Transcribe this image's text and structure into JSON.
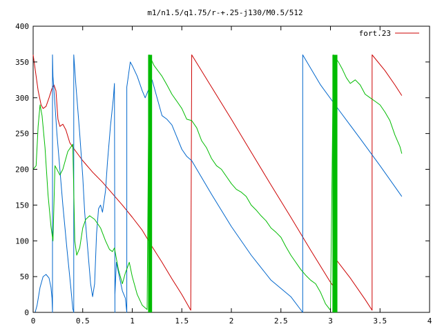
{
  "chart_data": {
    "type": "line",
    "title": "m1/n1.5/q1.75/r-+.25-j130/M0.5/512",
    "xlabel": "",
    "ylabel": "",
    "xlim": [
      0,
      4
    ],
    "ylim": [
      0,
      400
    ],
    "x_ticks": [
      0,
      0.5,
      1,
      1.5,
      2,
      2.5,
      3,
      3.5,
      4
    ],
    "x_tick_labels": [
      "0",
      "0.5",
      "1",
      "1.5",
      "2",
      "2.5",
      "3",
      "3.5",
      "4"
    ],
    "y_ticks": [
      0,
      50,
      100,
      150,
      200,
      250,
      300,
      350,
      400
    ],
    "y_tick_labels": [
      "0",
      "50",
      "100",
      "150",
      "200",
      "250",
      "300",
      "350",
      "400"
    ],
    "grid": false,
    "legend_position": "top-right",
    "legend": [
      {
        "label": "fort.23",
        "color": "#cc0000"
      }
    ],
    "series": [
      {
        "name": "fort.23",
        "color": "#cc0000",
        "points": [
          [
            0.0,
            360
          ],
          [
            0.02,
            340
          ],
          [
            0.05,
            310
          ],
          [
            0.08,
            290
          ],
          [
            0.1,
            285
          ],
          [
            0.13,
            288
          ],
          [
            0.16,
            300
          ],
          [
            0.19,
            313
          ],
          [
            0.21,
            318
          ],
          [
            0.23,
            310
          ],
          [
            0.25,
            270
          ],
          [
            0.27,
            260
          ],
          [
            0.3,
            263
          ],
          [
            0.33,
            255
          ],
          [
            0.37,
            237
          ],
          [
            0.42,
            227
          ],
          [
            0.5,
            212
          ],
          [
            0.6,
            196
          ],
          [
            0.7,
            182
          ],
          [
            0.8,
            166
          ],
          [
            0.9,
            150
          ],
          [
            1.0,
            133
          ],
          [
            1.1,
            115
          ],
          [
            1.2,
            92
          ],
          [
            1.3,
            70
          ],
          [
            1.4,
            47
          ],
          [
            1.5,
            25
          ],
          [
            1.59,
            3
          ],
          [
            1.6,
            360
          ],
          [
            1.8,
            315
          ],
          [
            2.0,
            270
          ],
          [
            2.2,
            224
          ],
          [
            2.4,
            178
          ],
          [
            2.6,
            133
          ],
          [
            2.8,
            87
          ],
          [
            3.0,
            42
          ],
          [
            3.05,
            33
          ],
          [
            3.05,
            75
          ],
          [
            3.2,
            48
          ],
          [
            3.35,
            18
          ],
          [
            3.42,
            3
          ],
          [
            3.42,
            360
          ],
          [
            3.55,
            338
          ],
          [
            3.65,
            318
          ],
          [
            3.72,
            303
          ]
        ]
      },
      {
        "color": "#0066cc",
        "points": [
          [
            0.0,
            0
          ],
          [
            0.02,
            0
          ],
          [
            0.04,
            10
          ],
          [
            0.07,
            35
          ],
          [
            0.1,
            50
          ],
          [
            0.13,
            53
          ],
          [
            0.16,
            48
          ],
          [
            0.18,
            35
          ],
          [
            0.19,
            20
          ],
          [
            0.195,
            0
          ],
          [
            0.195,
            360
          ],
          [
            0.2,
            330
          ],
          [
            0.22,
            290
          ],
          [
            0.24,
            250
          ],
          [
            0.27,
            200
          ],
          [
            0.3,
            150
          ],
          [
            0.34,
            90
          ],
          [
            0.38,
            35
          ],
          [
            0.4,
            5
          ],
          [
            0.41,
            0
          ],
          [
            0.41,
            360
          ],
          [
            0.43,
            320
          ],
          [
            0.47,
            250
          ],
          [
            0.5,
            190
          ],
          [
            0.52,
            140
          ],
          [
            0.55,
            90
          ],
          [
            0.58,
            40
          ],
          [
            0.6,
            22
          ],
          [
            0.62,
            40
          ],
          [
            0.64,
            110
          ],
          [
            0.66,
            145
          ],
          [
            0.68,
            150
          ],
          [
            0.7,
            140
          ],
          [
            0.73,
            170
          ],
          [
            0.75,
            210
          ],
          [
            0.78,
            260
          ],
          [
            0.81,
            300
          ],
          [
            0.82,
            320
          ],
          [
            0.825,
            0
          ],
          [
            0.825,
            25
          ],
          [
            0.84,
            70
          ],
          [
            0.87,
            50
          ],
          [
            0.9,
            30
          ],
          [
            0.93,
            20
          ],
          [
            0.945,
            0
          ],
          [
            0.945,
            315
          ],
          [
            0.96,
            330
          ],
          [
            0.98,
            350
          ],
          [
            1.0,
            345
          ],
          [
            1.05,
            330
          ],
          [
            1.1,
            310
          ],
          [
            1.13,
            300
          ],
          [
            1.16,
            310
          ],
          [
            1.2,
            325
          ],
          [
            1.25,
            300
          ],
          [
            1.3,
            275
          ],
          [
            1.35,
            270
          ],
          [
            1.4,
            262
          ],
          [
            1.45,
            245
          ],
          [
            1.5,
            228
          ],
          [
            1.55,
            218
          ],
          [
            1.6,
            212
          ],
          [
            1.8,
            165
          ],
          [
            2.0,
            120
          ],
          [
            2.2,
            80
          ],
          [
            2.4,
            45
          ],
          [
            2.6,
            22
          ],
          [
            2.72,
            0
          ],
          [
            2.72,
            360
          ],
          [
            2.9,
            318
          ],
          [
            3.1,
            280
          ],
          [
            3.3,
            243
          ],
          [
            3.5,
            205
          ],
          [
            3.72,
            162
          ]
        ]
      },
      {
        "color": "#00bb00",
        "points": [
          [
            0.0,
            200
          ],
          [
            0.03,
            205
          ],
          [
            0.05,
            260
          ],
          [
            0.07,
            290
          ],
          [
            0.09,
            275
          ],
          [
            0.12,
            230
          ],
          [
            0.15,
            165
          ],
          [
            0.18,
            120
          ],
          [
            0.2,
            100
          ],
          [
            0.22,
            205
          ],
          [
            0.24,
            200
          ],
          [
            0.27,
            192
          ],
          [
            0.3,
            200
          ],
          [
            0.35,
            225
          ],
          [
            0.4,
            235
          ],
          [
            0.42,
            100
          ],
          [
            0.44,
            80
          ],
          [
            0.47,
            90
          ],
          [
            0.5,
            118
          ],
          [
            0.53,
            130
          ],
          [
            0.57,
            135
          ],
          [
            0.62,
            130
          ],
          [
            0.68,
            118
          ],
          [
            0.73,
            100
          ],
          [
            0.77,
            88
          ],
          [
            0.8,
            85
          ],
          [
            0.82,
            90
          ],
          [
            0.86,
            60
          ],
          [
            0.9,
            40
          ],
          [
            0.93,
            55
          ],
          [
            0.97,
            70
          ],
          [
            1.0,
            50
          ],
          [
            1.05,
            25
          ],
          [
            1.1,
            10
          ],
          [
            1.15,
            4
          ],
          [
            1.17,
            360
          ],
          [
            1.22,
            345
          ],
          [
            1.3,
            330
          ],
          [
            1.35,
            318
          ],
          [
            1.4,
            305
          ],
          [
            1.45,
            295
          ],
          [
            1.5,
            285
          ],
          [
            1.55,
            270
          ],
          [
            1.6,
            268
          ],
          [
            1.65,
            258
          ],
          [
            1.7,
            240
          ],
          [
            1.75,
            230
          ],
          [
            1.8,
            215
          ],
          [
            1.85,
            205
          ],
          [
            1.9,
            200
          ],
          [
            1.95,
            190
          ],
          [
            2.0,
            180
          ],
          [
            2.05,
            172
          ],
          [
            2.1,
            168
          ],
          [
            2.15,
            162
          ],
          [
            2.2,
            150
          ],
          [
            2.25,
            143
          ],
          [
            2.3,
            135
          ],
          [
            2.35,
            128
          ],
          [
            2.4,
            118
          ],
          [
            2.45,
            112
          ],
          [
            2.5,
            105
          ],
          [
            2.55,
            92
          ],
          [
            2.6,
            80
          ],
          [
            2.65,
            70
          ],
          [
            2.7,
            60
          ],
          [
            2.75,
            52
          ],
          [
            2.8,
            45
          ],
          [
            2.85,
            40
          ],
          [
            2.9,
            28
          ],
          [
            2.95,
            12
          ],
          [
            3.0,
            3
          ],
          [
            3.03,
            360
          ],
          [
            3.08,
            350
          ],
          [
            3.12,
            340
          ],
          [
            3.16,
            328
          ],
          [
            3.2,
            320
          ],
          [
            3.25,
            325
          ],
          [
            3.3,
            318
          ],
          [
            3.35,
            305
          ],
          [
            3.4,
            300
          ],
          [
            3.45,
            295
          ],
          [
            3.5,
            290
          ],
          [
            3.55,
            280
          ],
          [
            3.6,
            268
          ],
          [
            3.65,
            248
          ],
          [
            3.7,
            232
          ],
          [
            3.72,
            222
          ]
        ]
      }
    ],
    "filled_bands": [
      {
        "color": "#00bb00",
        "x": [
          1.16,
          1.2
        ],
        "y": [
          0,
          360
        ]
      },
      {
        "color": "#00bb00",
        "x": [
          3.02,
          3.07
        ],
        "y": [
          0,
          360
        ]
      }
    ]
  }
}
